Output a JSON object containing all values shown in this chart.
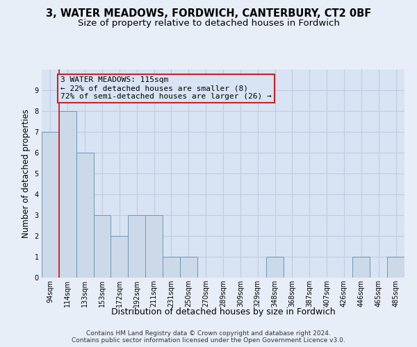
{
  "title1": "3, WATER MEADOWS, FORDWICH, CANTERBURY, CT2 0BF",
  "title2": "Size of property relative to detached houses in Fordwich",
  "xlabel": "Distribution of detached houses by size in Fordwich",
  "ylabel": "Number of detached properties",
  "categories": [
    "94sqm",
    "114sqm",
    "133sqm",
    "153sqm",
    "172sqm",
    "192sqm",
    "211sqm",
    "231sqm",
    "250sqm",
    "270sqm",
    "289sqm",
    "309sqm",
    "329sqm",
    "348sqm",
    "368sqm",
    "387sqm",
    "407sqm",
    "426sqm",
    "446sqm",
    "465sqm",
    "485sqm"
  ],
  "values": [
    7,
    8,
    6,
    3,
    2,
    3,
    3,
    1,
    1,
    0,
    0,
    0,
    0,
    1,
    0,
    0,
    0,
    0,
    1,
    0,
    1
  ],
  "bar_color": "#ccd9e8",
  "bar_edge_color": "#6699bb",
  "vline_x": 0.5,
  "vline_color": "#cc2222",
  "annotation_text": "3 WATER MEADOWS: 115sqm\n← 22% of detached houses are smaller (8)\n72% of semi-detached houses are larger (26) →",
  "annotation_box_color": "#cc2222",
  "ylim": [
    0,
    10
  ],
  "yticks": [
    0,
    1,
    2,
    3,
    4,
    5,
    6,
    7,
    8,
    9
  ],
  "footnote": "Contains HM Land Registry data © Crown copyright and database right 2024.\nContains public sector information licensed under the Open Government Licence v3.0.",
  "background_color": "#e8eef8",
  "grid_color": "#c0cce0",
  "bar_background_color": "#d8e4f4",
  "title1_fontsize": 10.5,
  "title2_fontsize": 9.5,
  "xlabel_fontsize": 9,
  "ylabel_fontsize": 8.5,
  "tick_fontsize": 7,
  "annotation_fontsize": 8,
  "footnote_fontsize": 6.5
}
